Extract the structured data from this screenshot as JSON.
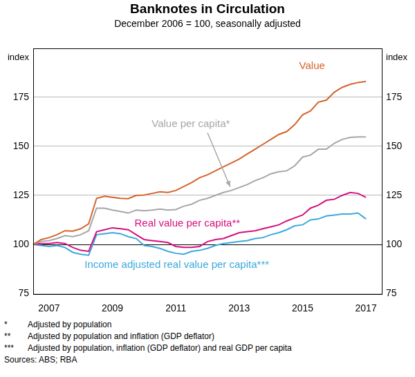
{
  "chart_data": {
    "type": "line",
    "title": "Banknotes in Circulation",
    "subtitle": "December 2006 = 100, seasonally adjusted",
    "ylabel": "index",
    "y2label": "index",
    "categories": [
      null,
      null,
      "2007",
      null,
      null,
      null,
      null,
      null,
      null,
      null,
      "2009",
      null,
      null,
      null,
      null,
      null,
      null,
      null,
      "2011",
      null,
      null,
      null,
      null,
      null,
      null,
      null,
      "2013",
      null,
      null,
      null,
      null,
      null,
      null,
      null,
      "2015",
      null,
      null,
      null,
      null,
      null,
      null,
      null,
      "2017",
      null,
      null
    ],
    "series": [
      {
        "name": "Value",
        "color": "#d4622a",
        "values": [
          100,
          102.5,
          103.5,
          105,
          107,
          106.8,
          108,
          110.5,
          123.5,
          124.5,
          124,
          123.5,
          123.3,
          125,
          125.2,
          126,
          126.8,
          126.5,
          127.5,
          129.5,
          131.5,
          134,
          135.5,
          137.5,
          139.5,
          141.5,
          143.5,
          146,
          148.5,
          151,
          153.5,
          156,
          157.5,
          161,
          166,
          168,
          172.5,
          173.5,
          177.5,
          180,
          181.5,
          182.5,
          183,
          null,
          null
        ]
      },
      {
        "name": "Value per capita*",
        "color": "#a6a6a6",
        "values": [
          100,
          101.5,
          102,
          103,
          104.5,
          104,
          105,
          107,
          118.5,
          118.5,
          117.5,
          116.8,
          116,
          117.5,
          117.2,
          117.5,
          118,
          117.5,
          117.8,
          119.5,
          120.5,
          122.5,
          123.5,
          125,
          126.5,
          127.5,
          129,
          130.5,
          132.5,
          134,
          136,
          137,
          137.5,
          140,
          144.5,
          145.5,
          148.5,
          148.5,
          151.5,
          153.5,
          154.5,
          154.8,
          154.8,
          null,
          null
        ]
      },
      {
        "name": "Real value per capita**",
        "color": "#d40f7d",
        "values": [
          100,
          100.5,
          100.5,
          101,
          100.5,
          98.5,
          97,
          96.5,
          106.5,
          107.5,
          108.5,
          108,
          107.5,
          105,
          102.5,
          102,
          101.5,
          101,
          99,
          98.5,
          98.5,
          99,
          101.5,
          102.5,
          103,
          104.5,
          106,
          106.5,
          107,
          108,
          109,
          110,
          112,
          113.5,
          115,
          118.5,
          120,
          122.5,
          123,
          125,
          126.5,
          126,
          124,
          null,
          null
        ]
      },
      {
        "name": "Income adjusted real value per capita***",
        "color": "#3aa9dc",
        "values": [
          100,
          99.5,
          99,
          99.5,
          98.5,
          96,
          95,
          94.5,
          105,
          105.5,
          106,
          105.5,
          104,
          103,
          99.5,
          99,
          98,
          96.5,
          95.5,
          95,
          96.5,
          97,
          98,
          99.5,
          100.5,
          101,
          101.5,
          102,
          103,
          103.5,
          105,
          106,
          107.5,
          109.5,
          110,
          112.5,
          113,
          114.5,
          115,
          115.5,
          115.5,
          116,
          113,
          null,
          null
        ]
      }
    ],
    "ylim": [
      75,
      200
    ],
    "yticks": [
      75,
      100,
      125,
      150,
      175
    ],
    "y2lim": [
      75,
      200
    ],
    "y2ticks": [
      75,
      100,
      125,
      150,
      175
    ],
    "grid": true,
    "notes": [
      {
        "mark": "*",
        "text": "Adjusted by population"
      },
      {
        "mark": "**",
        "text": "Adjusted by population and inflation (GDP deflator)"
      },
      {
        "mark": "***",
        "text": "Adjusted by population, inflation (GDP deflator) and real GDP per capita"
      }
    ],
    "source": "Sources: ABS; RBA"
  }
}
